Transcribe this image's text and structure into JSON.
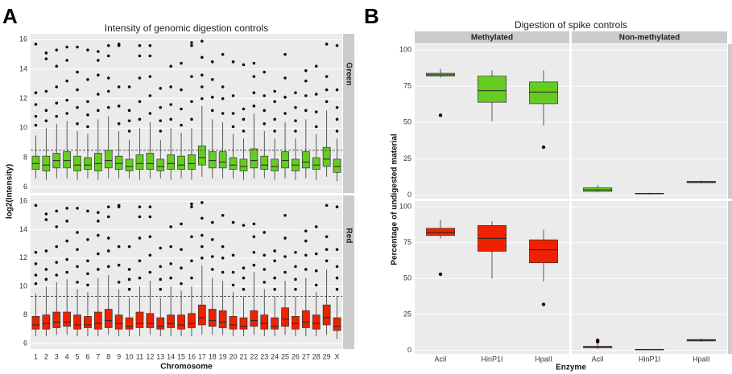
{
  "chart_data": [
    {
      "type": "boxplot",
      "panel_label": "A",
      "title": "Intensity of genomic digestion controls",
      "xlabel": "Chromosome",
      "ylabel": "log2(Intensity)",
      "categories": [
        "1",
        "2",
        "3",
        "4",
        "5",
        "6",
        "7",
        "8",
        "9",
        "10",
        "11",
        "12",
        "13",
        "14",
        "15",
        "16",
        "17",
        "18",
        "19",
        "20",
        "21",
        "22",
        "23",
        "24",
        "25",
        "26",
        "27",
        "28",
        "29",
        "X"
      ],
      "ylim": [
        5.6,
        16.4
      ],
      "yticks": [
        6,
        8,
        10,
        12,
        14,
        16
      ],
      "grid": true,
      "facets": [
        {
          "name": "Green",
          "color": "#66cc22",
          "hline": 8.5,
          "boxes": [
            [
              6.6,
              7.2,
              7.6,
              8.1,
              9.5
            ],
            [
              6.5,
              7.1,
              7.5,
              8.1,
              10
            ],
            [
              6.6,
              7.3,
              7.8,
              8.3,
              10.3
            ],
            [
              6.6,
              7.3,
              7.8,
              8.4,
              10.5
            ],
            [
              6.5,
              7.1,
              7.5,
              8.1,
              9.8
            ],
            [
              6.6,
              7.2,
              7.5,
              8.0,
              9.6
            ],
            [
              6.5,
              7.1,
              7.6,
              8.3,
              10.6
            ],
            [
              6.6,
              7.3,
              7.8,
              8.5,
              10.8
            ],
            [
              6.6,
              7.2,
              7.6,
              8.1,
              9.8
            ],
            [
              6.6,
              7.1,
              7.4,
              7.9,
              9.2
            ],
            [
              6.5,
              7.2,
              7.6,
              8.2,
              10
            ],
            [
              6.6,
              7.2,
              7.6,
              8.3,
              10.4
            ],
            [
              6.6,
              7.1,
              7.4,
              7.9,
              9.2
            ],
            [
              6.5,
              7.2,
              7.6,
              8.2,
              10
            ],
            [
              6.6,
              7.2,
              7.5,
              8.1,
              9.7
            ],
            [
              6.5,
              7.2,
              7.6,
              8.2,
              10
            ],
            [
              6.7,
              7.5,
              8.0,
              8.8,
              11.5
            ],
            [
              6.6,
              7.3,
              7.8,
              8.4,
              10.6
            ],
            [
              6.6,
              7.3,
              7.7,
              8.4,
              10.4
            ],
            [
              6.6,
              7.2,
              7.5,
              8.0,
              9.6
            ],
            [
              6.5,
              7.1,
              7.4,
              7.9,
              9.3
            ],
            [
              6.6,
              7.3,
              7.8,
              8.6,
              11
            ],
            [
              6.6,
              7.2,
              7.5,
              8.1,
              9.8
            ],
            [
              6.5,
              7.1,
              7.4,
              7.9,
              9.3
            ],
            [
              6.6,
              7.3,
              7.8,
              8.4,
              10.4
            ],
            [
              6.5,
              7.1,
              7.5,
              7.9,
              9.3
            ],
            [
              6.6,
              7.3,
              7.7,
              8.4,
              10.6
            ],
            [
              6.5,
              7.2,
              7.5,
              8.0,
              9.6
            ],
            [
              6.7,
              7.4,
              7.9,
              8.7,
              11.2
            ],
            [
              6.4,
              7.0,
              7.4,
              7.9,
              9.3
            ]
          ],
          "outliers": [
            [
              10.2,
              10.8,
              11.6,
              12.4,
              15.7
            ],
            [
              10.5,
              11.2,
              12.5,
              14.7,
              15.1
            ],
            [
              10.8,
              11.7,
              12.8,
              14.2,
              15.3
            ],
            [
              11,
              11.9,
              13.2,
              14.6,
              15.5
            ],
            [
              10.3,
              11.4,
              12.6,
              13.8,
              15.5
            ],
            [
              10.1,
              10.9,
              11.8,
              13.3,
              15.3
            ],
            [
              11.2,
              12.3,
              13.6,
              14.6,
              15.2
            ],
            [
              11.4,
              12.5,
              13.4,
              14.9,
              15.6
            ],
            [
              10.3,
              11.5,
              12.8,
              15.6,
              15.7
            ],
            [
              9.8,
              10.5,
              11.2,
              12.8
            ],
            [
              10.6,
              11.8,
              13.4,
              14.9,
              15.6
            ],
            [
              11,
              12.2,
              13.5,
              14.9,
              15.6
            ],
            [
              9.8,
              10.5,
              11.4,
              12.7
            ],
            [
              10.6,
              11.6,
              12.8,
              14.2
            ],
            [
              10.2,
              11.3,
              12.6,
              14.4
            ],
            [
              10.6,
              11.8,
              13.5,
              15.6,
              15.8
            ],
            [
              12,
              12.8,
              13.6,
              14.8,
              15.9
            ],
            [
              11.2,
              12.1,
              13.3,
              14.5
            ],
            [
              11,
              12,
              12.8,
              15
            ],
            [
              10.1,
              11,
              12.2,
              14.5
            ],
            [
              9.8,
              10.6,
              11.3,
              14.3
            ],
            [
              11.5,
              12.4,
              13.5,
              14.4
            ],
            [
              10.3,
              11.2,
              12.2,
              13.8
            ],
            [
              9.8,
              10.6,
              11.8,
              12.5
            ],
            [
              11,
              12.1,
              13.4,
              15
            ],
            [
              9.8,
              10.5,
              11.4,
              12.4
            ],
            [
              11.2,
              12.2,
              13.2,
              13.9
            ],
            [
              10.1,
              11.1,
              12.3,
              14.2
            ],
            [
              11.8,
              12.6,
              13.5,
              15.7
            ],
            [
              9.8,
              10.6,
              11.4,
              12.6,
              15.6
            ]
          ]
        },
        {
          "name": "Red",
          "color": "#ee2200",
          "hline": 9.3,
          "boxes": [
            [
              6.5,
              7.0,
              7.3,
              7.9,
              9.5
            ],
            [
              6.5,
              7.0,
              7.4,
              8.0,
              10
            ],
            [
              6.6,
              7.1,
              7.5,
              8.2,
              10.3
            ],
            [
              6.6,
              7.2,
              7.5,
              8.2,
              10.5
            ],
            [
              6.5,
              7.0,
              7.3,
              8.0,
              9.8
            ],
            [
              6.5,
              7.1,
              7.3,
              7.9,
              9.6
            ],
            [
              6.5,
              7.0,
              7.4,
              8.2,
              10.6
            ],
            [
              6.6,
              7.1,
              7.6,
              8.4,
              10.8
            ],
            [
              6.5,
              7.0,
              7.4,
              8.0,
              9.8
            ],
            [
              6.5,
              7.0,
              7.2,
              7.8,
              9.2
            ],
            [
              6.5,
              7.1,
              7.4,
              8.2,
              10
            ],
            [
              6.6,
              7.1,
              7.4,
              8.1,
              10.4
            ],
            [
              6.5,
              7.0,
              7.2,
              7.8,
              9.2
            ],
            [
              6.5,
              7.1,
              7.4,
              8.0,
              10
            ],
            [
              6.5,
              7.0,
              7.3,
              8.0,
              9.7
            ],
            [
              6.5,
              7.1,
              7.4,
              8.1,
              10
            ],
            [
              6.6,
              7.3,
              7.8,
              8.7,
              11.5
            ],
            [
              6.6,
              7.2,
              7.6,
              8.4,
              10.6
            ],
            [
              6.6,
              7.1,
              7.5,
              8.3,
              10.4
            ],
            [
              6.5,
              7.0,
              7.3,
              7.9,
              9.6
            ],
            [
              6.5,
              7.0,
              7.2,
              7.8,
              9.3
            ],
            [
              6.6,
              7.2,
              7.6,
              8.3,
              11
            ],
            [
              6.5,
              7.0,
              7.4,
              8.0,
              9.8
            ],
            [
              6.5,
              7.0,
              7.2,
              7.8,
              9.3
            ],
            [
              6.6,
              7.2,
              7.7,
              8.5,
              10.4
            ],
            [
              6.5,
              7.0,
              7.4,
              7.9,
              9.3
            ],
            [
              6.5,
              7.1,
              7.5,
              8.3,
              10.6
            ],
            [
              6.5,
              7.0,
              7.4,
              8.0,
              9.6
            ],
            [
              6.6,
              7.3,
              7.8,
              8.7,
              11.2
            ],
            [
              6.3,
              6.9,
              7.2,
              7.8,
              9.3
            ]
          ],
          "outliers": [
            [
              10.2,
              10.8,
              11.6,
              12.4,
              15.7
            ],
            [
              10.5,
              11.2,
              12.5,
              14.7,
              15.1
            ],
            [
              10.8,
              11.7,
              12.8,
              14.2,
              15.3
            ],
            [
              11,
              11.9,
              13.2,
              14.6,
              15.5
            ],
            [
              10.3,
              11.4,
              12.6,
              13.8,
              15.5
            ],
            [
              10.1,
              10.9,
              11.8,
              13.3,
              15.3
            ],
            [
              11.2,
              12.3,
              13.6,
              14.6,
              15.2
            ],
            [
              11.4,
              12.5,
              13.4,
              14.9,
              15.6
            ],
            [
              10.3,
              11.5,
              12.8,
              15.6,
              15.7
            ],
            [
              9.8,
              10.5,
              11.2,
              12.8
            ],
            [
              10.6,
              11.8,
              13.4,
              14.9,
              15.6
            ],
            [
              11,
              12.2,
              13.5,
              14.9,
              15.6
            ],
            [
              9.8,
              10.5,
              11.4,
              12.7
            ],
            [
              10.6,
              11.6,
              12.8,
              14.2
            ],
            [
              10.2,
              11.3,
              12.6,
              14.4
            ],
            [
              10.6,
              11.8,
              13.5,
              15.6,
              15.8
            ],
            [
              12,
              12.8,
              13.6,
              14.8,
              15.9
            ],
            [
              11.2,
              12.1,
              13.3,
              14.5
            ],
            [
              11,
              12,
              12.8,
              15
            ],
            [
              10.1,
              11,
              12.2,
              14.5
            ],
            [
              9.8,
              10.6,
              11.3,
              14.3
            ],
            [
              11.5,
              12.4,
              13.5,
              14.4
            ],
            [
              10.3,
              11.2,
              12.2,
              13.8
            ],
            [
              9.8,
              10.6,
              11.8,
              12.5
            ],
            [
              11,
              12.1,
              13.4,
              15
            ],
            [
              9.8,
              10.5,
              11.4,
              12.4
            ],
            [
              11.2,
              12.2,
              13.2,
              13.9
            ],
            [
              10.1,
              11.1,
              12.3,
              14.2
            ],
            [
              11.8,
              12.6,
              13.5,
              15.7
            ],
            [
              9.8,
              10.6,
              11.4,
              12.6,
              15.6
            ]
          ]
        }
      ]
    },
    {
      "type": "boxplot",
      "panel_label": "B",
      "title": "Digestion of spike controls",
      "xlabel": "Enzyme",
      "ylabel": "Percentage of undigested material",
      "categories": [
        "AciI",
        "HinP1I",
        "HpaII"
      ],
      "columns": [
        "Methylated",
        "Non-methylated"
      ],
      "ylim": [
        -2.5,
        104
      ],
      "yticks": [
        0,
        25,
        50,
        75,
        100
      ],
      "grid": true,
      "rows": [
        {
          "name": "Green",
          "color": "#66cc22",
          "boxes": [
            [
              [
                81,
                82,
                83,
                84,
                87
              ],
              [
                51,
                64,
                72,
                82,
                86
              ],
              [
                48,
                63,
                71,
                78,
                86
              ]
            ],
            [
              [
                2,
                2.5,
                3.5,
                5,
                7
              ],
              [
                0.5,
                0.8,
                1,
                1.2,
                1.5
              ],
              [
                8,
                8.5,
                9,
                9.5,
                10
              ]
            ]
          ],
          "outliers": [
            [
              [
                55
              ],
              [],
              [
                33
              ]
            ],
            [
              [],
              [],
              []
            ]
          ]
        },
        {
          "name": "Red",
          "color": "#ee2200",
          "boxes": [
            [
              [
                78,
                80,
                82,
                85,
                91
              ],
              [
                50,
                69,
                78,
                87,
                90
              ],
              [
                48,
                61,
                70,
                77,
                84
              ]
            ],
            [
              [
                1,
                1.8,
                2.2,
                2.8,
                5
              ],
              [
                0,
                0.3,
                0.5,
                0.7,
                1
              ],
              [
                6,
                6.5,
                7,
                7.5,
                8.5
              ]
            ]
          ],
          "outliers": [
            [
              [
                53
              ],
              [],
              [
                32
              ]
            ],
            [
              [
                6,
                7
              ],
              [],
              []
            ]
          ]
        }
      ]
    }
  ]
}
